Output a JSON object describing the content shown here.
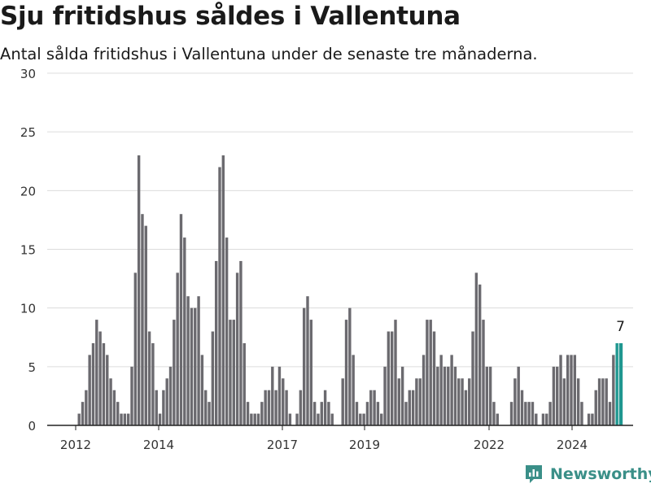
{
  "title": "Sju fritidshus såldes i Vallentuna",
  "subtitle": "Antal sålda fritidshus i Vallentuna under de senaste tre månaderna.",
  "brand": {
    "name": "Newsworthy",
    "icon": "newsworthy-logo-icon",
    "color": "#3a8f88"
  },
  "chart_data": {
    "type": "bar",
    "title": "Sju fritidshus såldes i Vallentuna",
    "subtitle": "Antal sålda fritidshus i Vallentuna under de senaste tre månaderna.",
    "ylim": [
      0,
      30
    ],
    "yticks": [
      0,
      5,
      10,
      15,
      20,
      25,
      30
    ],
    "xtick_labels": [
      "2012",
      "2014",
      "2017",
      "2019",
      "2022",
      "2024"
    ],
    "grid": true,
    "bar_color": "#6b6a6f",
    "highlight_color": "#1f9790",
    "highlight_label": "7",
    "values": [
      1,
      2,
      3,
      6,
      7,
      9,
      8,
      7,
      6,
      4,
      3,
      2,
      1,
      1,
      1,
      5,
      13,
      23,
      18,
      17,
      8,
      7,
      3,
      1,
      3,
      4,
      5,
      9,
      13,
      18,
      16,
      11,
      10,
      10,
      11,
      6,
      3,
      2,
      8,
      14,
      22,
      23,
      16,
      9,
      9,
      13,
      14,
      7,
      2,
      1,
      1,
      1,
      2,
      3,
      3,
      5,
      3,
      5,
      4,
      3,
      1,
      0,
      1,
      3,
      10,
      11,
      9,
      2,
      1,
      2,
      3,
      2,
      1,
      0,
      0,
      4,
      9,
      10,
      6,
      2,
      1,
      1,
      2,
      3,
      3,
      2,
      1,
      5,
      8,
      8,
      9,
      4,
      5,
      2,
      3,
      3,
      4,
      4,
      6,
      9,
      9,
      8,
      5,
      6,
      5,
      5,
      6,
      5,
      4,
      4,
      3,
      4,
      8,
      13,
      12,
      9,
      5,
      5,
      2,
      1,
      0,
      0,
      0,
      2,
      4,
      5,
      3,
      2,
      2,
      2,
      1,
      0,
      1,
      1,
      2,
      5,
      5,
      6,
      4,
      6,
      6,
      6,
      4,
      2,
      0,
      1,
      1,
      3,
      4,
      4,
      4,
      2,
      6,
      7,
      7
    ]
  }
}
